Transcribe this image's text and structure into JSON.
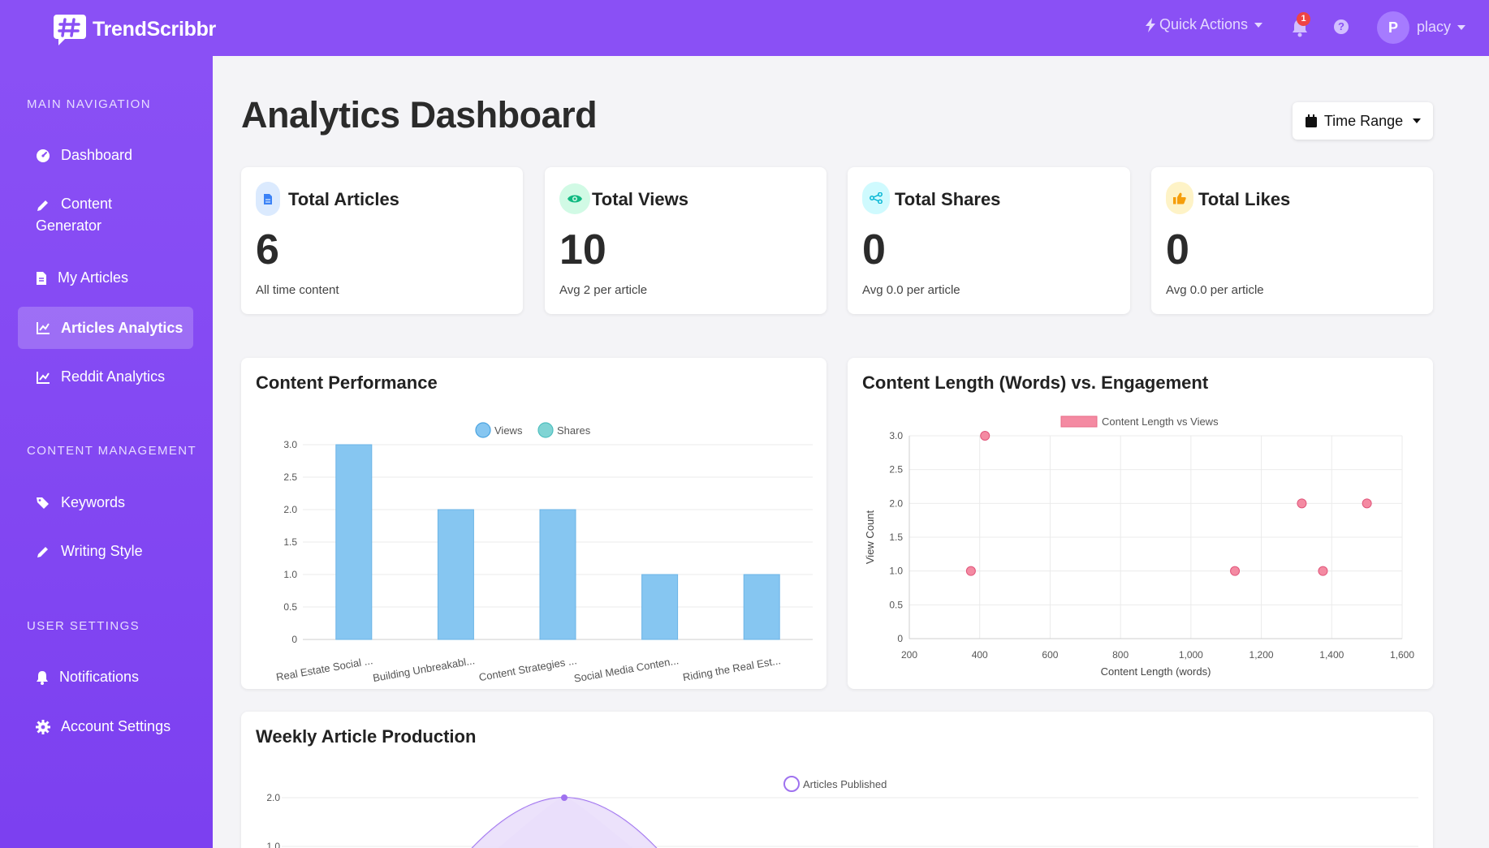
{
  "app": {
    "name": "TrendScribbr"
  },
  "header": {
    "quick_actions": "Quick Actions",
    "notification_count": "1",
    "help": "?",
    "avatar_initial": "P",
    "username": "placy"
  },
  "sidebar": {
    "sections": [
      {
        "title": "MAIN NAVIGATION"
      },
      {
        "title": "CONTENT MANAGEMENT"
      },
      {
        "title": "USER SETTINGS"
      }
    ],
    "items": [
      {
        "label": "Dashboard",
        "icon": "dashboard-icon"
      },
      {
        "label_line1": "Content",
        "label_line2": "Generator",
        "icon": "pencil-icon"
      },
      {
        "label": "My Articles",
        "icon": "document-icon"
      },
      {
        "label": "Articles Analytics",
        "icon": "chart-line-icon",
        "active": true
      },
      {
        "label": "Reddit Analytics",
        "icon": "chart-line-icon"
      },
      {
        "label": "Keywords",
        "icon": "tags-icon"
      },
      {
        "label": "Writing Style",
        "icon": "pencil-icon"
      },
      {
        "label": "Notifications",
        "icon": "bell-icon"
      },
      {
        "label": "Account Settings",
        "icon": "gear-icon"
      }
    ]
  },
  "main": {
    "title": "Analytics Dashboard",
    "time_range": "Time Range",
    "stats": [
      {
        "label": "Total Articles",
        "value": "6",
        "sub": "All time content",
        "icon": "document-icon",
        "color": "#3b82f6",
        "bg": "#dbeafe"
      },
      {
        "label": "Total Views",
        "value": "10",
        "sub": "Avg 2 per article",
        "icon": "eye-icon",
        "color": "#10b981",
        "bg": "#d1fae5"
      },
      {
        "label": "Total Shares",
        "value": "0",
        "sub": "Avg 0.0 per article",
        "icon": "share-icon",
        "color": "#06b6d4",
        "bg": "#cffafe"
      },
      {
        "label": "Total Likes",
        "value": "0",
        "sub": "Avg 0.0 per article",
        "icon": "thumbs-up-icon",
        "color": "#f59e0b",
        "bg": "#fef3c7"
      }
    ]
  },
  "chart_data": [
    {
      "type": "bar",
      "title": "Content Performance",
      "categories": [
        "Real Estate Social ...",
        "Building Unbreakabl...",
        "Content Strategies ...",
        "Social Media Conten...",
        "Riding the Real Est..."
      ],
      "series": [
        {
          "name": "Views",
          "values": [
            3,
            2,
            2,
            1,
            1
          ],
          "color": "#86c6f1"
        },
        {
          "name": "Shares",
          "values": [
            0,
            0,
            0,
            0,
            0
          ],
          "color": "#80d4d4"
        }
      ],
      "yticks": [
        "0",
        "0.5",
        "1.0",
        "1.5",
        "2.0",
        "2.5",
        "3.0"
      ],
      "ylim": [
        0,
        3
      ],
      "legend": "top",
      "grid": true
    },
    {
      "type": "scatter",
      "title": "Content Length (Words) vs. Engagement",
      "series": [
        {
          "name": "Content Length vs Views",
          "color": "#f48aa2",
          "points": [
            [
              415,
              3
            ],
            [
              375,
              1
            ],
            [
              1315,
              2
            ],
            [
              1500,
              2
            ],
            [
              1125,
              1
            ],
            [
              1375,
              1
            ]
          ]
        }
      ],
      "xlabel": "Content Length (words)",
      "ylabel": "View Count",
      "xticks": [
        "200",
        "400",
        "600",
        "800",
        "1,000",
        "1,200",
        "1,400",
        "1,600"
      ],
      "yticks": [
        "0",
        "0.5",
        "1.0",
        "1.5",
        "2.0",
        "2.5",
        "3.0"
      ],
      "xlim": [
        200,
        1600
      ],
      "ylim": [
        0,
        3
      ],
      "legend": "top",
      "grid": true
    },
    {
      "type": "area",
      "title": "Weekly Article Production",
      "series": [
        {
          "name": "Articles Published",
          "color": "#9f72ef"
        }
      ],
      "peak_value": 2,
      "yticks": [
        "2.0",
        "1.0"
      ],
      "legend": "top"
    }
  ]
}
